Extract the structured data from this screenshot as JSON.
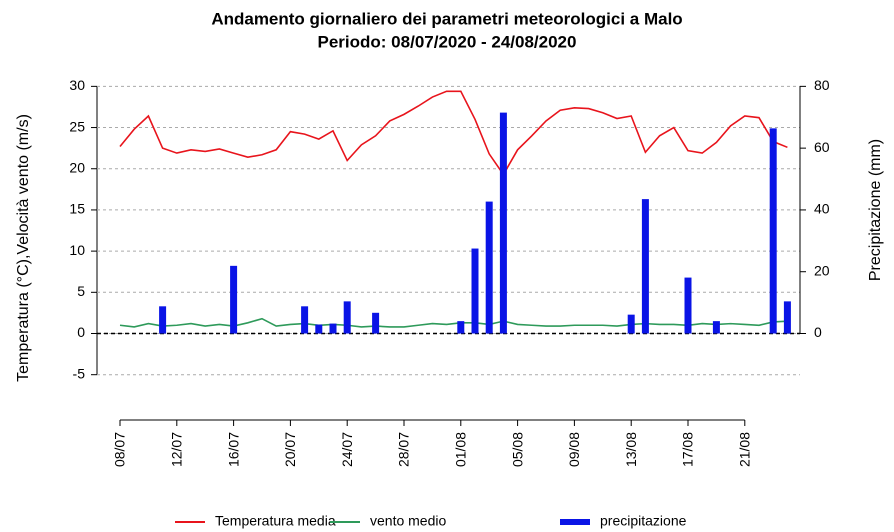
{
  "chart_data": {
    "type": "combo",
    "title": "Andamento giornaliero dei parametri meteorologici a Malo",
    "subtitle": "Periodo:  08/07/2020 -  24/08/2020",
    "y_label": "Temperatura (°C),Velocità vento (m/s)",
    "y2_label": "Precipitazione (mm)",
    "categories": [
      "08/07",
      null,
      null,
      null,
      "12/07",
      null,
      null,
      null,
      "16/07",
      null,
      null,
      null,
      "20/07",
      null,
      null,
      null,
      "24/07",
      null,
      null,
      null,
      "28/07",
      null,
      null,
      null,
      "01/08",
      null,
      null,
      null,
      "05/08",
      null,
      null,
      null,
      "09/08",
      null,
      null,
      null,
      "13/08",
      null,
      null,
      null,
      "17/08",
      null,
      null,
      null,
      "21/08",
      null,
      null,
      null
    ],
    "ylim": [
      -10.5,
      31.5
    ],
    "yticks": [
      -5,
      0,
      5,
      10,
      15,
      20,
      25,
      30
    ],
    "y2lim": [
      -28,
      84
    ],
    "y2ticks": [
      0,
      20,
      40,
      60,
      80
    ],
    "grid": true,
    "legend": "bottom",
    "series": [
      {
        "name": "Temperatura media",
        "type": "line",
        "color": "#e8141c",
        "axis": "y",
        "values": [
          22.7,
          24.8,
          26.4,
          22.5,
          21.9,
          22.3,
          22.1,
          22.4,
          21.9,
          21.4,
          21.7,
          22.3,
          24.5,
          24.2,
          23.6,
          24.6,
          21.0,
          22.9,
          24.0,
          25.8,
          26.6,
          27.6,
          28.7,
          29.4,
          29.4,
          26.0,
          21.8,
          19.3,
          22.3,
          24.0,
          25.8,
          27.1,
          27.4,
          27.3,
          26.8,
          26.1,
          26.4,
          22.0,
          24.0,
          25.0,
          22.2,
          21.9,
          23.2,
          25.2,
          26.4,
          26.2,
          23.3,
          22.6
        ]
      },
      {
        "name": "vento medio",
        "type": "line",
        "color": "#2e9a5a",
        "axis": "y",
        "values": [
          1.0,
          0.8,
          1.2,
          0.9,
          1.0,
          1.2,
          0.9,
          1.1,
          0.9,
          1.3,
          1.8,
          0.9,
          1.1,
          1.2,
          1.0,
          1.1,
          1.0,
          0.8,
          0.9,
          0.8,
          0.8,
          1.0,
          1.2,
          1.1,
          1.3,
          1.3,
          1.1,
          1.5,
          1.1,
          1.0,
          0.9,
          0.9,
          1.0,
          1.0,
          1.0,
          0.9,
          1.1,
          1.2,
          1.1,
          1.1,
          1.0,
          1.2,
          1.1,
          1.2,
          1.1,
          1.0,
          1.4,
          1.5
        ]
      },
      {
        "name": "precipitazione",
        "type": "bar",
        "color": "#0a14e6",
        "axis": "y2",
        "values": [
          0,
          0,
          0,
          8.8,
          0,
          0,
          0,
          0,
          21.9,
          0,
          0,
          0,
          0,
          8.8,
          2.9,
          3.2,
          10.4,
          0,
          6.7,
          0,
          0,
          0,
          0,
          0,
          4.0,
          27.5,
          42.7,
          71.5,
          0,
          0,
          0,
          0,
          0,
          0,
          0,
          0,
          6.1,
          43.5,
          0,
          0,
          18.1,
          0,
          4.0,
          0,
          0,
          0,
          66.4,
          10.4
        ]
      }
    ]
  }
}
